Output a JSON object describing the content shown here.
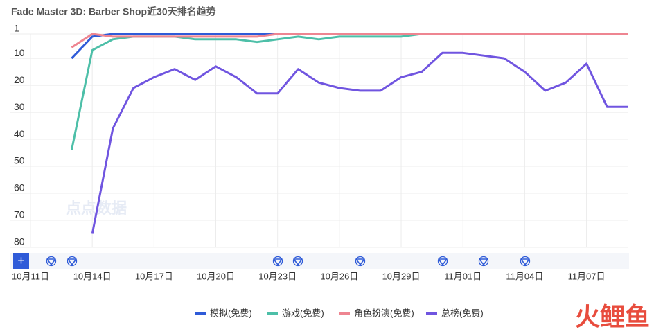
{
  "chart_data": {
    "type": "line",
    "title": "Fade Master 3D: Barber Shop近30天排名趋势",
    "categories": [
      "10月11日",
      null,
      null,
      "10月14日",
      null,
      null,
      "10月17日",
      null,
      null,
      "10月20日",
      null,
      null,
      "10月23日",
      null,
      null,
      "10月26日",
      null,
      null,
      "10月29日",
      null,
      null,
      "11月01日",
      null,
      null,
      "11月04日",
      null,
      null,
      "11月07日",
      null,
      null
    ],
    "series": [
      {
        "name": "模拟(免费)",
        "color": "#2f5bd8",
        "values": [
          null,
          null,
          10,
          2,
          1,
          1,
          1,
          1,
          1,
          1,
          1,
          1,
          1,
          1,
          1,
          1,
          1,
          1,
          1,
          1,
          1,
          1,
          1,
          1,
          1,
          1,
          1,
          1,
          1,
          1
        ]
      },
      {
        "name": "游戏(免费)",
        "color": "#4dbfa8",
        "values": [
          null,
          null,
          44,
          7,
          3,
          2,
          2,
          2,
          3,
          3,
          3,
          4,
          3,
          2,
          3,
          2,
          2,
          2,
          2,
          1,
          1,
          1,
          1,
          1,
          1,
          1,
          1,
          1,
          1,
          1
        ]
      },
      {
        "name": "角色扮演(免费)",
        "color": "#ee8591",
        "values": [
          null,
          null,
          6,
          1,
          2,
          2,
          2,
          2,
          2,
          2,
          2,
          2,
          1,
          1,
          1,
          1,
          1,
          1,
          1,
          1,
          1,
          1,
          1,
          1,
          1,
          1,
          1,
          1,
          1,
          1
        ]
      },
      {
        "name": "总榜(免费)",
        "color": "#7055e0",
        "values": [
          null,
          null,
          null,
          75,
          36,
          21,
          17,
          14,
          18,
          13,
          17,
          23,
          23,
          14,
          19,
          21,
          22,
          22,
          17,
          15,
          8,
          8,
          9,
          10,
          15,
          22,
          19,
          12,
          28,
          28
        ]
      }
    ],
    "ylim": [
      1,
      80
    ],
    "yticks": [
      1,
      10,
      20,
      30,
      40,
      50,
      60,
      70,
      80
    ],
    "reversed": true,
    "grid": true,
    "watermark": "点点数据",
    "logo": "火鲤鱼"
  }
}
